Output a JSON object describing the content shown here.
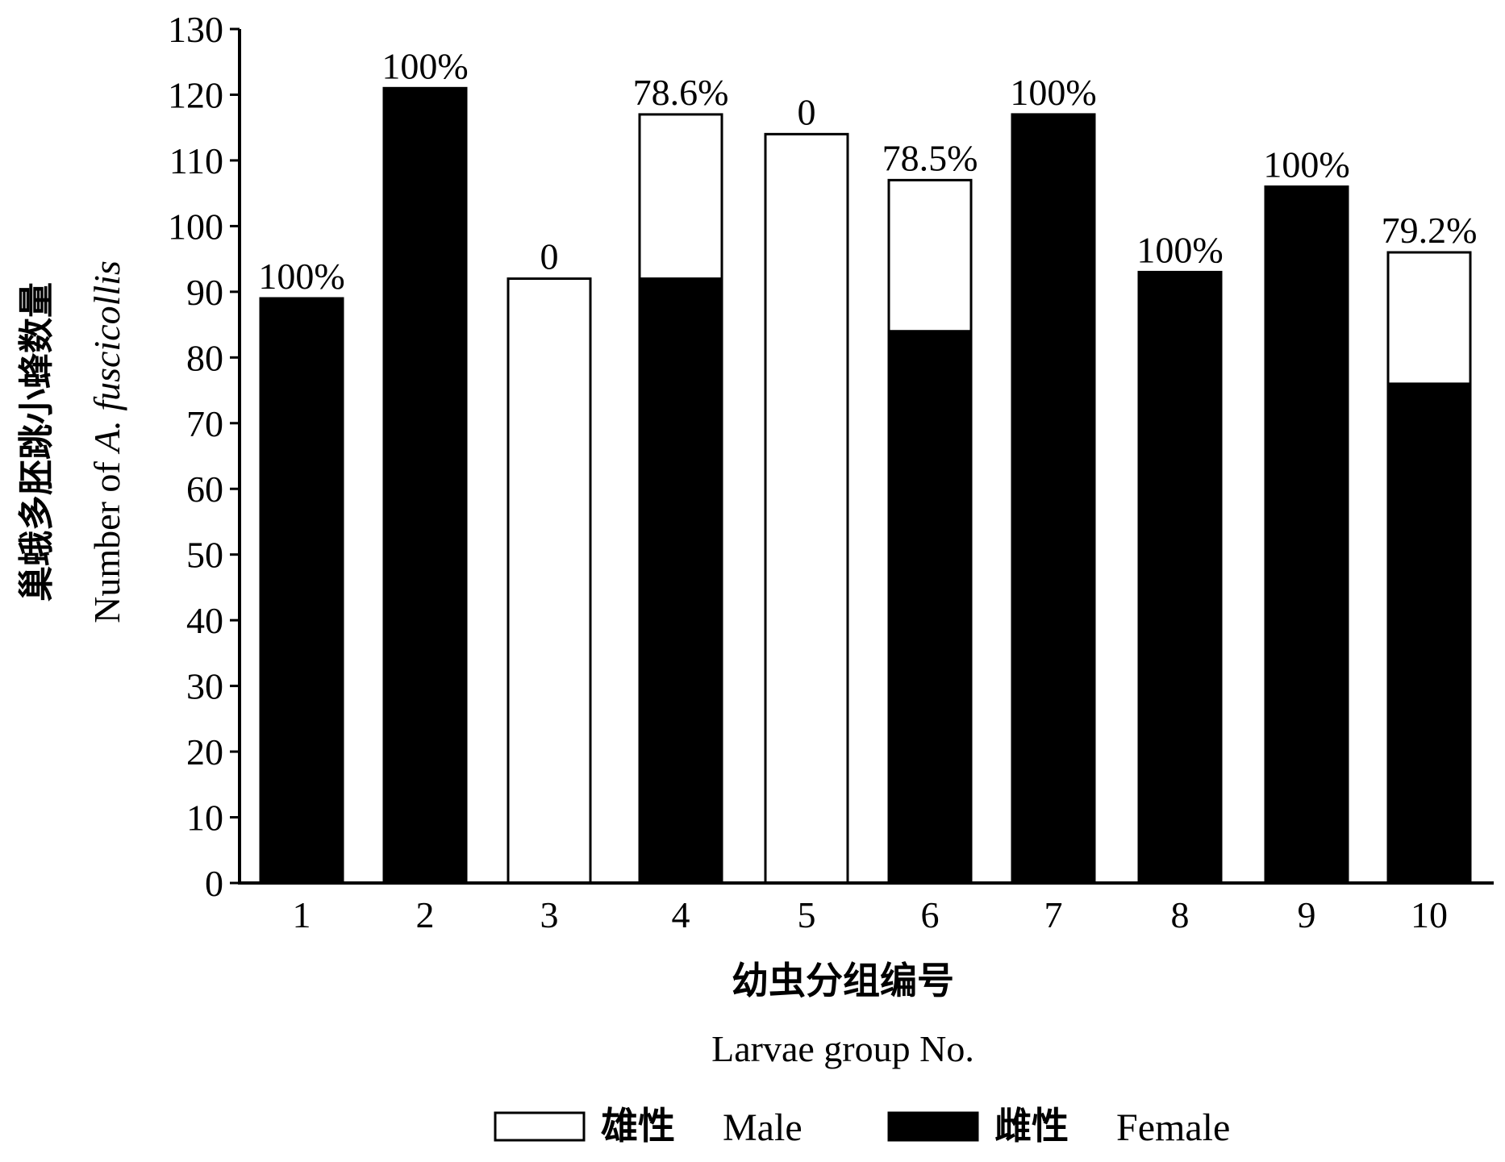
{
  "chart_data": {
    "type": "bar",
    "stacked": true,
    "categories": [
      "1",
      "2",
      "3",
      "4",
      "5",
      "6",
      "7",
      "8",
      "9",
      "10"
    ],
    "series": [
      {
        "name": "雌性 Female",
        "color": "#000000",
        "values": [
          89,
          121,
          0,
          92,
          0,
          84,
          117,
          93,
          106,
          76
        ]
      },
      {
        "name": "雄性 Male",
        "color": "#ffffff",
        "values": [
          0,
          0,
          92,
          25,
          114,
          23,
          0,
          0,
          0,
          20
        ]
      }
    ],
    "totals": [
      89,
      121,
      92,
      117,
      114,
      107,
      117,
      93,
      106,
      96
    ],
    "bar_labels": [
      "100%",
      "100%",
      "0",
      "78.6%",
      "0",
      "78.5%",
      "100%",
      "100%",
      "100%",
      "79.2%"
    ],
    "ylim": [
      0,
      130
    ],
    "yticks": [
      0,
      10,
      20,
      30,
      40,
      50,
      60,
      70,
      80,
      90,
      100,
      110,
      120,
      130
    ],
    "ylabel_zh": "巢蛾多胚跳小蜂数量",
    "ylabel_en": "Number of A. fuscicollis",
    "ylabel_en_plain": "Number of ",
    "ylabel_en_italic": "A. fuscicollis",
    "xlabel_zh": "幼虫分组编号",
    "xlabel_en": "Larvae group No.",
    "grid": false,
    "legend_position": "bottom",
    "legend": [
      {
        "zh": "雄性",
        "en": "Male",
        "color": "#ffffff"
      },
      {
        "zh": "雌性",
        "en": "Female",
        "color": "#000000"
      }
    ]
  }
}
